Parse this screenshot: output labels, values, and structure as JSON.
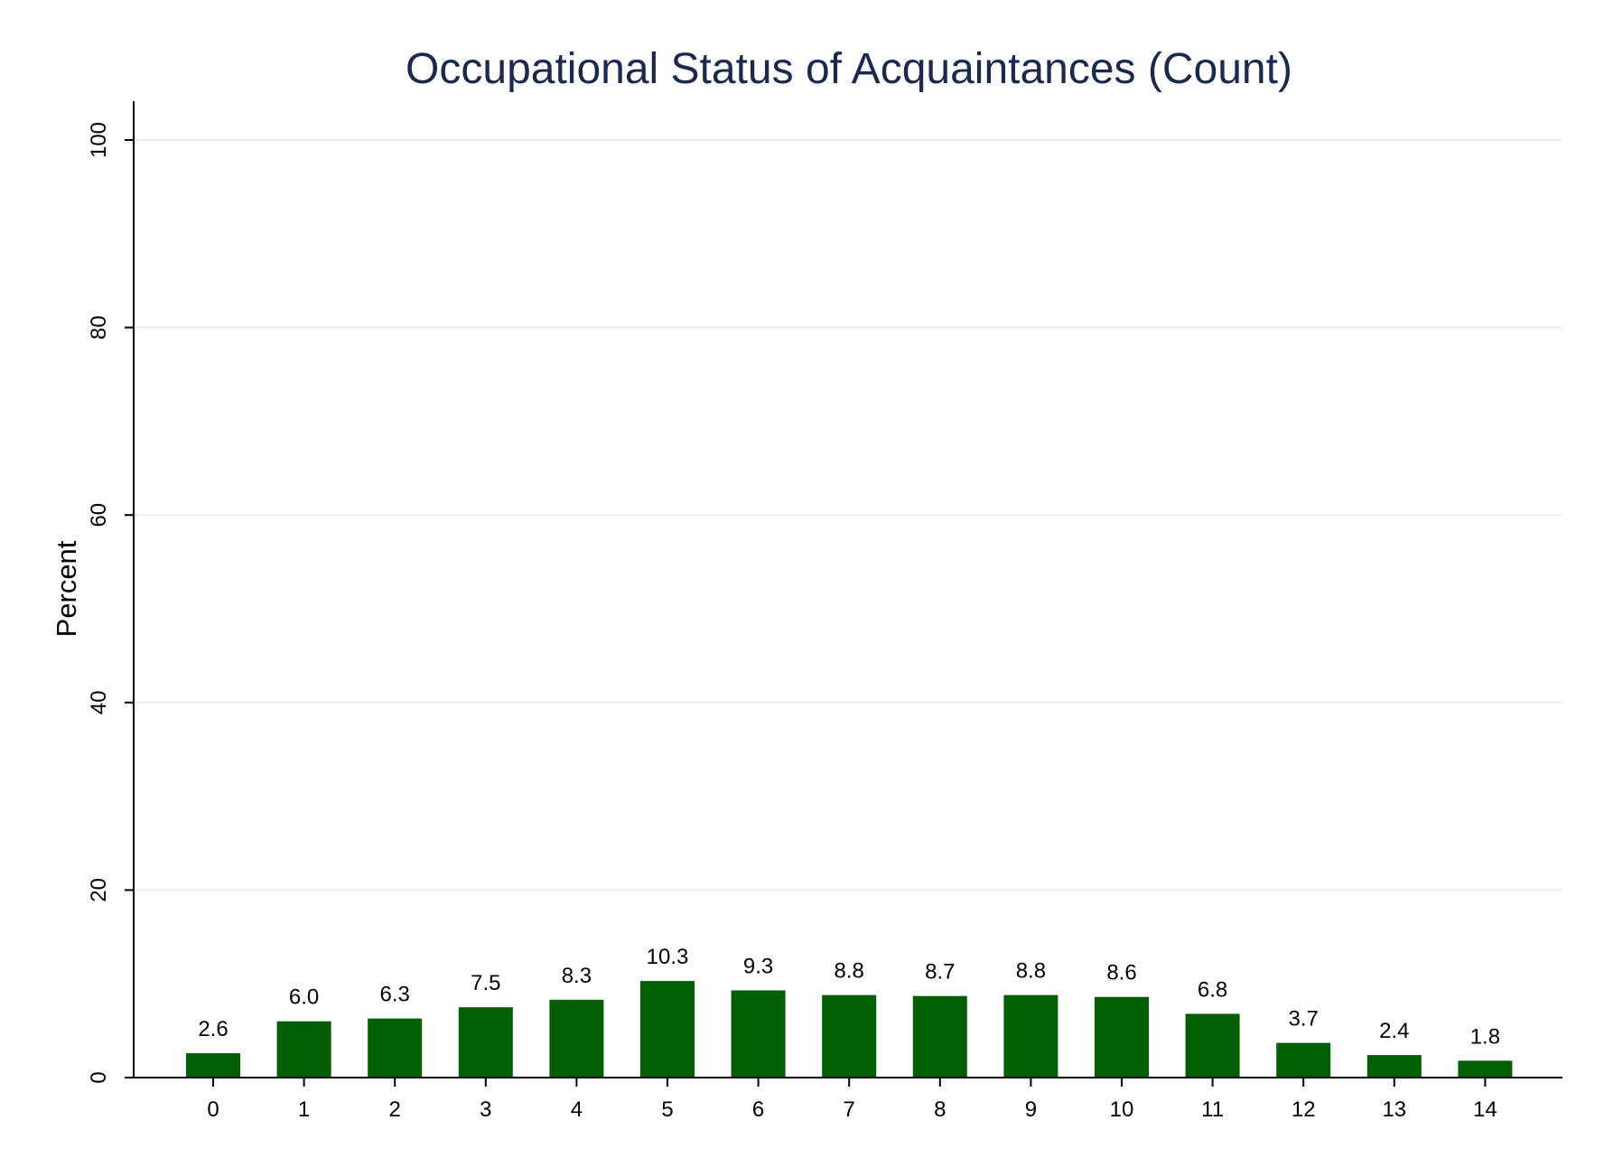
{
  "chart_data": {
    "type": "bar",
    "title": "Occupational Status of Acquaintances (Count)",
    "xlabel": "",
    "ylabel": "Percent",
    "ylim": [
      0,
      100
    ],
    "yticks": [
      0,
      20,
      40,
      60,
      80,
      100
    ],
    "grid": true,
    "categories": [
      "0",
      "1",
      "2",
      "3",
      "4",
      "5",
      "6",
      "7",
      "8",
      "9",
      "10",
      "11",
      "12",
      "13",
      "14"
    ],
    "values": [
      2.6,
      6.0,
      6.3,
      7.5,
      8.3,
      10.3,
      9.3,
      8.8,
      8.7,
      8.8,
      8.6,
      6.8,
      3.7,
      2.4,
      1.8
    ],
    "value_labels": [
      "2.6",
      "6.0",
      "6.3",
      "7.5",
      "8.3",
      "10.3",
      "9.3",
      "8.8",
      "8.7",
      "8.8",
      "8.6",
      "6.8",
      "3.7",
      "2.4",
      "1.8"
    ],
    "bar_color": "#005f00"
  }
}
